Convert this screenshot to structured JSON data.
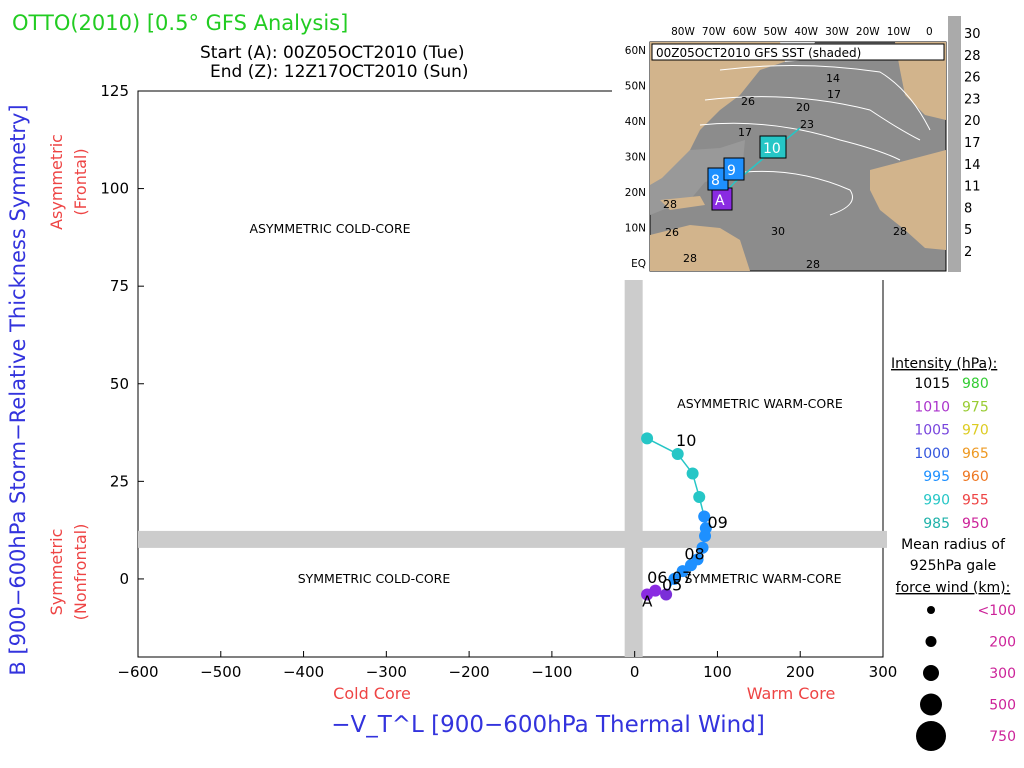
{
  "header": {
    "title": "OTTO(2010) [0.5° GFS Analysis]",
    "start": "Start (A): 00Z05OCT2010 (Tue)",
    "end": "End (Z): 12Z17OCT2010 (Sun)"
  },
  "colors": {
    "title": "#22cc22",
    "axis_label": "#3333dd",
    "hint": "#ee4444",
    "band": "#cccccc",
    "track_teal": "#26c6c6",
    "track_blue": "#1e90ff",
    "track_purple": "#8a2be2"
  },
  "chart_data": [
    {
      "type": "scatter",
      "title": "",
      "xlabel": "−V_T^L [900−600hPa Thermal Wind]",
      "ylabel": "B [900−600hPa Storm−Relative Thickness Symmetry]",
      "xlim": [
        -600,
        300
      ],
      "ylim": [
        -20,
        125
      ],
      "x_ticks": [
        -600,
        -500,
        -400,
        -300,
        -200,
        -100,
        0,
        100,
        200,
        300
      ],
      "y_ticks": [
        0,
        25,
        50,
        75,
        100,
        125
      ],
      "x_hints": {
        "left": "Cold Core",
        "right": "Warm Core"
      },
      "y_hints": {
        "upper": [
          "Asymmetric",
          "(Frontal)"
        ],
        "lower": [
          "Symmetric",
          "(Nonfrontal)"
        ]
      },
      "quadrants": {
        "upper_left": "ASYMMETRIC COLD-CORE",
        "upper_right": "ASYMMETRIC WARM-CORE",
        "lower_left": "SYMMETRIC COLD-CORE",
        "lower_right": "SYMMETRIC WARM-CORE"
      },
      "reference_bands": {
        "x": 0,
        "y": 10
      },
      "track": {
        "points": [
          {
            "x": 15,
            "y": -4,
            "color": "#8a2be2",
            "label": "A"
          },
          {
            "x": 25,
            "y": -3,
            "color": "#8a2be2"
          },
          {
            "x": 38,
            "y": -4,
            "color": "#7b2fd8"
          },
          {
            "x": 48,
            "y": 0,
            "color": "#1e90ff"
          },
          {
            "x": 58,
            "y": 2,
            "color": "#1e90ff"
          },
          {
            "x": 68,
            "y": 3.5,
            "color": "#1e90ff"
          },
          {
            "x": 76,
            "y": 5,
            "color": "#1e90ff"
          },
          {
            "x": 82,
            "y": 8,
            "color": "#1e90ff"
          },
          {
            "x": 85,
            "y": 11,
            "color": "#1e90ff"
          },
          {
            "x": 86,
            "y": 13,
            "color": "#1e90ff"
          },
          {
            "x": 84,
            "y": 16,
            "color": "#1e90ff"
          },
          {
            "x": 78,
            "y": 21,
            "color": "#26c6c6"
          },
          {
            "x": 70,
            "y": 27,
            "color": "#26c6c6"
          },
          {
            "x": 52,
            "y": 32,
            "color": "#26c6c6"
          },
          {
            "x": 15,
            "y": 36,
            "color": "#26c6c6"
          }
        ],
        "date_labels": [
          {
            "text": "10",
            "x": 50,
            "y": 34
          },
          {
            "text": "09",
            "x": 88,
            "y": 13
          },
          {
            "text": "08",
            "x": 60,
            "y": 5
          },
          {
            "text": "07",
            "x": 45,
            "y": -1
          },
          {
            "text": "06",
            "x": 15,
            "y": -1
          },
          {
            "text": "05",
            "x": 33,
            "y": -3
          }
        ]
      }
    },
    {
      "type": "heatmap",
      "title": "00Z05OCT2010 GFS SST (shaded)",
      "lon_labels": [
        "80W",
        "70W",
        "60W",
        "50W",
        "40W",
        "30W",
        "20W",
        "10W",
        "0"
      ],
      "lat_labels": [
        "60N",
        "50N",
        "40N",
        "30N",
        "20N",
        "10N",
        "EQ"
      ],
      "colorbar": [
        30,
        28,
        26,
        23,
        20,
        17,
        14,
        11,
        8,
        5,
        2
      ],
      "contour_labels": [
        "14",
        "17",
        "20",
        "23",
        "26",
        "17",
        "28",
        "28",
        "26",
        "30",
        "28",
        "28"
      ],
      "track_boxes": [
        "A",
        "8",
        "9",
        "10"
      ]
    }
  ],
  "intensity_legend": {
    "title": "Intensity (hPa):",
    "rows": [
      {
        "left": "1015",
        "left_color": "#000000",
        "right": "980",
        "right_color": "#33cc33"
      },
      {
        "left": "1010",
        "left_color": "#aa33cc",
        "right": "975",
        "right_color": "#99cc33"
      },
      {
        "left": "1005",
        "left_color": "#7744dd",
        "right": "970",
        "right_color": "#ddcc22"
      },
      {
        "left": "1000",
        "left_color": "#3355dd",
        "right": "965",
        "right_color": "#ee9922"
      },
      {
        "left": "995",
        "left_color": "#1e90ff",
        "right": "960",
        "right_color": "#ee7722"
      },
      {
        "left": "990",
        "left_color": "#26c6c6",
        "right": "955",
        "right_color": "#ee4444"
      },
      {
        "left": "985",
        "left_color": "#20b2aa",
        "right": "950",
        "right_color": "#cc2299"
      }
    ]
  },
  "radius_legend": {
    "title": [
      "Mean radius of",
      "925hPa gale",
      "force wind (km):"
    ],
    "items": [
      "<100",
      "200",
      "300",
      "500",
      "750"
    ],
    "color": "#cc2299"
  }
}
